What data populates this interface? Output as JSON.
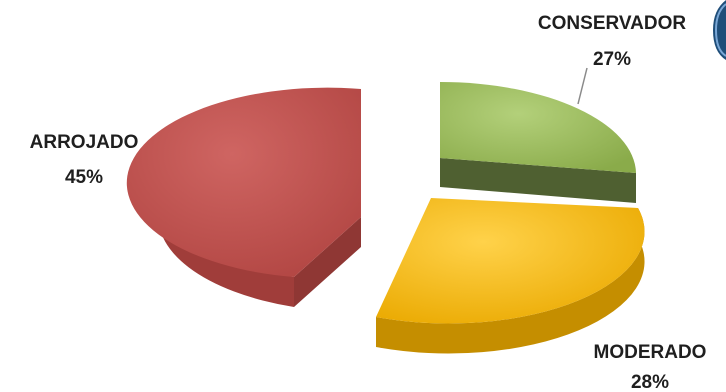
{
  "chart_data": {
    "type": "pie",
    "title": "",
    "slices": [
      {
        "label": "CONSERVADOR",
        "value": 27,
        "display": "27%",
        "color": "#9BBB59"
      },
      {
        "label": "MODERADO",
        "value": 28,
        "display": "28%",
        "color": "#F5B800"
      },
      {
        "label": "ARROJADO",
        "value": 45,
        "display": "45%",
        "color": "#C0504D"
      }
    ]
  }
}
